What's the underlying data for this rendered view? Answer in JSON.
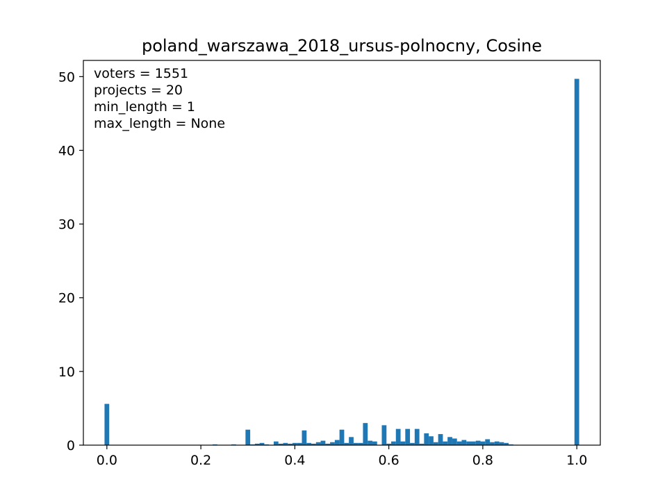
{
  "chart_data": {
    "type": "bar",
    "title": "poland_warszawa_2018_ursus-polnocny, Cosine",
    "xlabel": "",
    "ylabel": "",
    "xlim": [
      -0.05,
      1.05
    ],
    "ylim": [
      0,
      52.2
    ],
    "xticks": [
      "0.0",
      "0.2",
      "0.4",
      "0.6",
      "0.8",
      "1.0"
    ],
    "yticks": [
      "0",
      "10",
      "20",
      "30",
      "40",
      "50"
    ],
    "bin_width": 0.01,
    "color": "#1f77b4",
    "grid": false,
    "annotations": [
      "voters = 1551",
      "projects = 20",
      "min_length = 1",
      "max_length = None"
    ],
    "bins": [
      [
        0.0,
        5.6
      ],
      [
        0.2,
        0.05
      ],
      [
        0.23,
        0.1
      ],
      [
        0.27,
        0.1
      ],
      [
        0.3,
        2.1
      ],
      [
        0.31,
        0.1
      ],
      [
        0.32,
        0.2
      ],
      [
        0.33,
        0.3
      ],
      [
        0.34,
        0.1
      ],
      [
        0.36,
        0.5
      ],
      [
        0.37,
        0.2
      ],
      [
        0.38,
        0.3
      ],
      [
        0.39,
        0.2
      ],
      [
        0.4,
        0.3
      ],
      [
        0.41,
        0.3
      ],
      [
        0.42,
        2.0
      ],
      [
        0.43,
        0.3
      ],
      [
        0.44,
        0.2
      ],
      [
        0.45,
        0.4
      ],
      [
        0.46,
        0.6
      ],
      [
        0.47,
        0.2
      ],
      [
        0.48,
        0.4
      ],
      [
        0.49,
        0.7
      ],
      [
        0.5,
        2.1
      ],
      [
        0.51,
        0.3
      ],
      [
        0.52,
        1.1
      ],
      [
        0.53,
        0.3
      ],
      [
        0.54,
        0.3
      ],
      [
        0.55,
        3.0
      ],
      [
        0.56,
        0.6
      ],
      [
        0.57,
        0.5
      ],
      [
        0.59,
        2.7
      ],
      [
        0.6,
        0.2
      ],
      [
        0.61,
        0.5
      ],
      [
        0.62,
        2.2
      ],
      [
        0.63,
        0.5
      ],
      [
        0.64,
        2.2
      ],
      [
        0.65,
        0.3
      ],
      [
        0.66,
        2.2
      ],
      [
        0.67,
        0.2
      ],
      [
        0.68,
        1.6
      ],
      [
        0.69,
        1.2
      ],
      [
        0.7,
        0.4
      ],
      [
        0.71,
        1.5
      ],
      [
        0.72,
        0.5
      ],
      [
        0.73,
        1.1
      ],
      [
        0.74,
        0.9
      ],
      [
        0.75,
        0.5
      ],
      [
        0.76,
        0.7
      ],
      [
        0.77,
        0.5
      ],
      [
        0.78,
        0.5
      ],
      [
        0.79,
        0.6
      ],
      [
        0.8,
        0.5
      ],
      [
        0.81,
        0.8
      ],
      [
        0.82,
        0.4
      ],
      [
        0.83,
        0.5
      ],
      [
        0.84,
        0.4
      ],
      [
        0.85,
        0.3
      ],
      [
        0.86,
        0.1
      ],
      [
        0.87,
        0.05
      ],
      [
        1.0,
        49.7
      ]
    ]
  }
}
